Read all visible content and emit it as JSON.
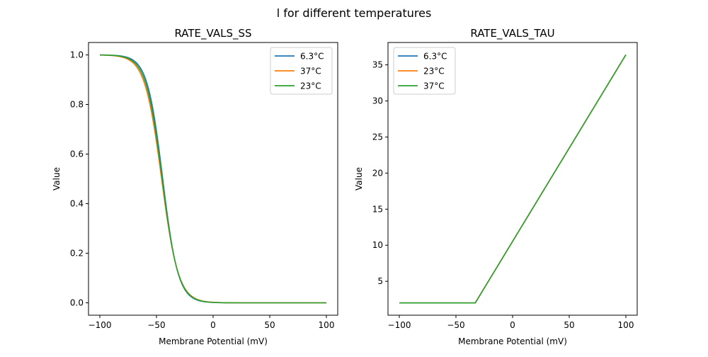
{
  "chart_data": [
    {
      "type": "line",
      "title": "RATE_VALS_SS",
      "xlabel": "Membrane Potential (mV)",
      "ylabel": "Value",
      "xlim": [
        -110,
        110
      ],
      "ylim": [
        -0.05,
        1.05
      ],
      "xticks": [
        "−100",
        "−50",
        "0",
        "50",
        "100"
      ],
      "xtick_values": [
        -100,
        -50,
        0,
        50,
        100
      ],
      "yticks": [
        "0.0",
        "0.2",
        "0.4",
        "0.6",
        "0.8",
        "1.0"
      ],
      "ytick_values": [
        0,
        0.2,
        0.4,
        0.6,
        0.8,
        1.0
      ],
      "legend_position": "top-right",
      "series": [
        {
          "name": "6.3°C",
          "color": "#1f77b4",
          "vhalf": -44.5,
          "slope": 6.8
        },
        {
          "name": "37°C",
          "color": "#ff7f0e",
          "vhalf": -45.5,
          "slope": 7.4
        },
        {
          "name": "23°C",
          "color": "#2ca02c",
          "vhalf": -45.0,
          "slope": 7.1
        }
      ],
      "x_range": [
        -100,
        100
      ]
    },
    {
      "type": "line",
      "title": "RATE_VALS_TAU",
      "xlabel": "Membrane Potential (mV)",
      "ylabel": "Value",
      "xlim": [
        -110,
        110
      ],
      "ylim": [
        0.3,
        38.1
      ],
      "xticks": [
        "−100",
        "−50",
        "0",
        "50",
        "100"
      ],
      "xtick_values": [
        -100,
        -50,
        0,
        50,
        100
      ],
      "yticks": [
        "5",
        "10",
        "15",
        "20",
        "25",
        "30",
        "35"
      ],
      "ytick_values": [
        5,
        10,
        15,
        20,
        25,
        30,
        35
      ],
      "legend_position": "top-left",
      "series": [
        {
          "name": "6.3°C",
          "color": "#1f77b4"
        },
        {
          "name": "23°C",
          "color": "#ff7f0e"
        },
        {
          "name": "37°C",
          "color": "#2ca02c"
        }
      ],
      "points": [
        [
          -100,
          2.0
        ],
        [
          -33,
          2.0
        ],
        [
          100,
          36.4
        ]
      ]
    }
  ],
  "figure_title": "l for different temperatures"
}
